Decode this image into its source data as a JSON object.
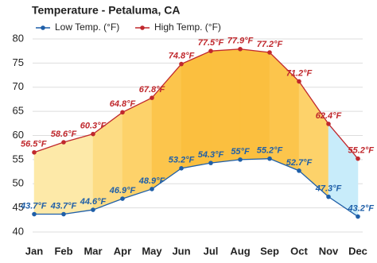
{
  "chart_data": {
    "type": "line",
    "title": "Temperature - Petaluma, CA",
    "categories": [
      "Jan",
      "Feb",
      "Mar",
      "Apr",
      "May",
      "Jun",
      "Jul",
      "Aug",
      "Sep",
      "Oct",
      "Nov",
      "Dec"
    ],
    "series": [
      {
        "name": "Low Temp. (°F)",
        "color": "#1f5fa8",
        "values": [
          43.7,
          43.7,
          44.6,
          46.9,
          48.9,
          53.2,
          54.3,
          55,
          55.2,
          52.7,
          47.3,
          43.2
        ],
        "value_labels": [
          "43.7°F",
          "43.7°F",
          "44.6°F",
          "46.9°F",
          "48.9°F",
          "53.2°F",
          "54.3°F",
          "55°F",
          "55.2°F",
          "52.7°F",
          "47.3°F",
          "43.2°F"
        ]
      },
      {
        "name": "High Temp. (°F)",
        "color": "#c0282d",
        "values": [
          56.5,
          58.6,
          60.3,
          64.8,
          67.8,
          74.8,
          77.5,
          77.9,
          77.2,
          71.2,
          62.4,
          55.2
        ],
        "value_labels": [
          "56.5°F",
          "58.6°F",
          "60.3°F",
          "64.8°F",
          "67.8°F",
          "74.8°F",
          "77.5°F",
          "77.9°F",
          "77.2°F",
          "71.2°F",
          "62.4°F",
          "55.2°F"
        ]
      }
    ],
    "fill_colors": [
      "#fde9a8",
      "#fde9a8",
      "#fddc84",
      "#fdd26a",
      "#fcc54c",
      "#fbbf3f",
      "#fbbf3f",
      "#fbbf3f",
      "#fcc54c",
      "#fdd26a",
      "#c8ecfa"
    ],
    "ylim": [
      40,
      80
    ],
    "yticks": [
      40,
      45,
      50,
      55,
      60,
      65,
      70,
      75,
      80
    ],
    "grid": true
  }
}
